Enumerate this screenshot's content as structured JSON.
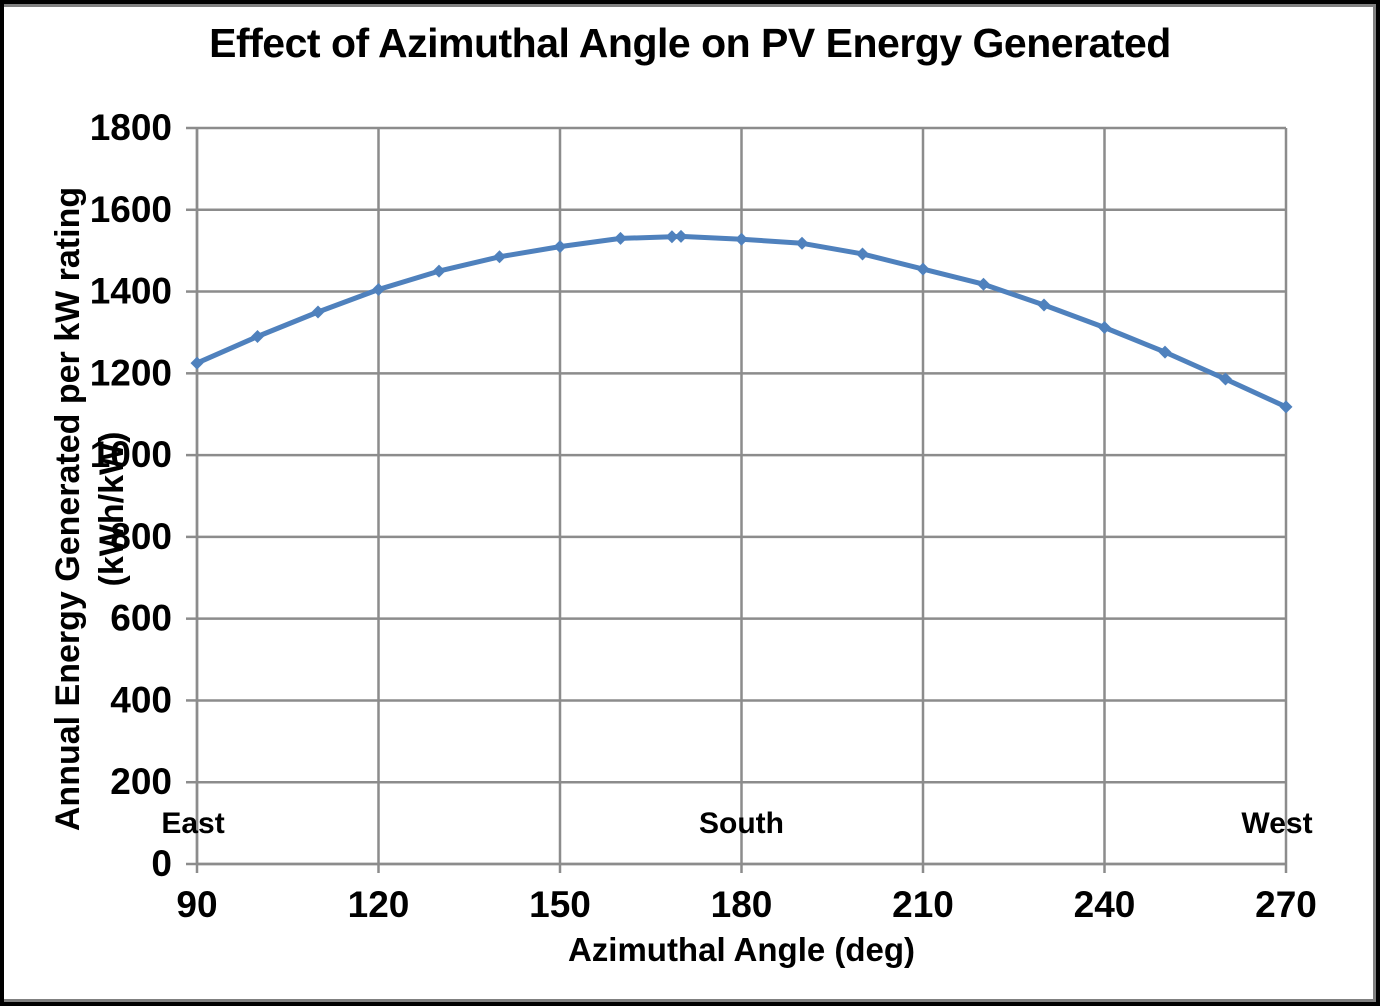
{
  "chart": {
    "title": "Effect of Azimuthal Angle on PV Energy Generated"
  },
  "chart_data": {
    "type": "line",
    "title": "Effect of Azimuthal Angle on PV Energy Generated",
    "xlabel": "Azimuthal Angle (deg)",
    "ylabel": "Annual Energy Generated per kW rating (kWh/kW)",
    "xlim": [
      90,
      270
    ],
    "ylim": [
      0,
      1800
    ],
    "x_ticks": [
      90,
      120,
      150,
      180,
      210,
      240,
      270
    ],
    "y_ticks": [
      0,
      200,
      400,
      600,
      800,
      1000,
      1200,
      1400,
      1600,
      1800
    ],
    "grid": true,
    "legend": false,
    "series": [
      {
        "name": "Annual energy generated per kW rating",
        "color": "#4F81BD",
        "marker": "diamond",
        "points": [
          [
            90,
            1225
          ],
          [
            100,
            1290
          ],
          [
            110,
            1350
          ],
          [
            120,
            1405
          ],
          [
            130,
            1450
          ],
          [
            140,
            1485
          ],
          [
            150,
            1510
          ],
          [
            160,
            1530
          ],
          [
            168.5,
            1534
          ],
          [
            170,
            1535
          ],
          [
            180,
            1528
          ],
          [
            190,
            1518
          ],
          [
            200,
            1492
          ],
          [
            210,
            1455
          ],
          [
            220,
            1418
          ],
          [
            230,
            1367
          ],
          [
            240,
            1312
          ],
          [
            250,
            1252
          ],
          [
            260,
            1186
          ],
          [
            270,
            1118
          ]
        ]
      }
    ],
    "annotations": [
      {
        "label": "East",
        "x": 90
      },
      {
        "label": "South",
        "x": 180
      },
      {
        "label": "West",
        "x": 270
      }
    ]
  },
  "colors": {
    "series": "#4F81BD",
    "gridline": "#8C8C8C",
    "axis": "#8C8C8C",
    "text": "#000000",
    "frame_outer": "#000000",
    "frame_inner": "#808080",
    "background": "#FFFFFF"
  }
}
